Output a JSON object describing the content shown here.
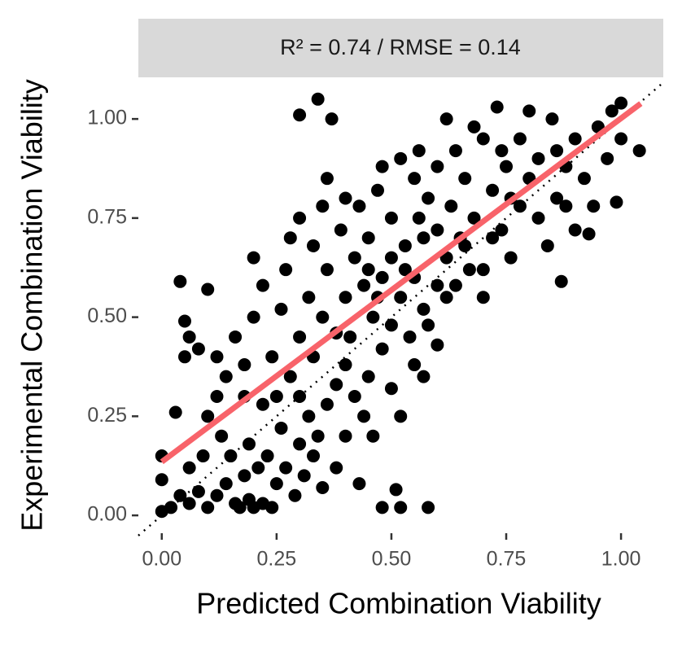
{
  "chart_data": {
    "type": "scatter",
    "strip_title": "R² = 0.74 / RMSE = 0.14",
    "x_label": "Predicted Combination Viability",
    "y_label": "Experimental Combination Viability",
    "xlim": [
      -0.051,
      1.092
    ],
    "ylim": [
      -0.045,
      1.105
    ],
    "xticks": [
      {
        "value": 0,
        "label": "0.00"
      },
      {
        "value": 0.25,
        "label": "0.25"
      },
      {
        "value": 0.5,
        "label": "0.50"
      },
      {
        "value": 0.75,
        "label": "0.75"
      },
      {
        "value": 1,
        "label": "1.00"
      }
    ],
    "yticks": [
      {
        "value": 0,
        "label": "0.00"
      },
      {
        "value": 0.25,
        "label": "0.25"
      },
      {
        "value": 0.5,
        "label": "0.50"
      },
      {
        "value": 0.75,
        "label": "0.75"
      },
      {
        "value": 1,
        "label": "1.00"
      }
    ],
    "identity_line": true,
    "series": [
      {
        "name": "combinations",
        "color": "#000000",
        "x": [
          0.3,
          0.34,
          0.37,
          0.48,
          0.52,
          0.51,
          0.58,
          0.57,
          0.03,
          0.0,
          0.0,
          0.0,
          1.04,
          1.0,
          0.99,
          0.93,
          0.87,
          0.04,
          0.05,
          0.1,
          0.02,
          0.04,
          0.06,
          0.08,
          0.1,
          0.12,
          0.14,
          0.16,
          0.17,
          0.19,
          0.2,
          0.22,
          0.24,
          0.18,
          0.21,
          0.15,
          0.13,
          0.19,
          0.23,
          0.25,
          0.27,
          0.29,
          0.31,
          0.33,
          0.35,
          0.26,
          0.22,
          0.18,
          0.14,
          0.12,
          0.08,
          0.05,
          0.06,
          0.16,
          0.2,
          0.18,
          0.24,
          0.28,
          0.3,
          0.32,
          0.34,
          0.36,
          0.38,
          0.4,
          0.42,
          0.44,
          0.46,
          0.45,
          0.48,
          0.3,
          0.26,
          0.22,
          0.27,
          0.2,
          0.32,
          0.35,
          0.38,
          0.4,
          0.36,
          0.33,
          0.3,
          0.28,
          0.35,
          0.39,
          0.42,
          0.44,
          0.46,
          0.5,
          0.52,
          0.48,
          0.45,
          0.43,
          0.47,
          0.5,
          0.53,
          0.55,
          0.57,
          0.54,
          0.58,
          0.6,
          0.62,
          0.6,
          0.58,
          0.55,
          0.52,
          0.48,
          0.56,
          0.6,
          0.63,
          0.65,
          0.67,
          0.7,
          0.68,
          0.66,
          0.64,
          0.7,
          0.72,
          0.74,
          0.76,
          0.78,
          0.75,
          0.78,
          0.8,
          0.82,
          0.84,
          0.86,
          0.88,
          0.9,
          0.85,
          0.8,
          0.73,
          0.68,
          0.62,
          0.92,
          0.95,
          0.97,
          0.94,
          0.9,
          0.98,
          1.0,
          0.55,
          0.6,
          0.5,
          0.52,
          0.4,
          0.38,
          0.43,
          0.3,
          0.1,
          0.09,
          0.06,
          0.12,
          0.25,
          0.33,
          0.41,
          0.47,
          0.53,
          0.57,
          0.62,
          0.66,
          0.72,
          0.76,
          0.82,
          0.86,
          0.88,
          0.7,
          0.64,
          0.45,
          0.4,
          0.36,
          0.5,
          0.56,
          0.74
        ],
        "values": [
          1.01,
          1.05,
          1.0,
          0.02,
          0.02,
          0.065,
          0.02,
          0.35,
          0.26,
          0.15,
          0.01,
          0.09,
          0.92,
          1.04,
          0.79,
          0.71,
          0.59,
          0.59,
          0.49,
          0.57,
          0.02,
          0.05,
          0.03,
          0.06,
          0.02,
          0.05,
          0.08,
          0.03,
          0.02,
          0.04,
          0.02,
          0.03,
          0.02,
          0.1,
          0.12,
          0.15,
          0.2,
          0.18,
          0.15,
          0.08,
          0.12,
          0.05,
          0.1,
          0.15,
          0.07,
          0.22,
          0.28,
          0.3,
          0.35,
          0.4,
          0.42,
          0.4,
          0.45,
          0.45,
          0.5,
          0.38,
          0.4,
          0.35,
          0.3,
          0.25,
          0.2,
          0.28,
          0.33,
          0.38,
          0.3,
          0.25,
          0.2,
          0.35,
          0.42,
          0.45,
          0.52,
          0.58,
          0.62,
          0.65,
          0.55,
          0.5,
          0.46,
          0.55,
          0.62,
          0.68,
          0.75,
          0.7,
          0.78,
          0.72,
          0.65,
          0.58,
          0.5,
          0.48,
          0.55,
          0.6,
          0.7,
          0.78,
          0.82,
          0.75,
          0.68,
          0.6,
          0.52,
          0.45,
          0.48,
          0.58,
          0.65,
          0.72,
          0.8,
          0.85,
          0.9,
          0.88,
          0.92,
          0.88,
          0.78,
          0.7,
          0.62,
          0.55,
          0.75,
          0.85,
          0.92,
          0.95,
          0.82,
          0.72,
          0.65,
          0.78,
          0.88,
          0.95,
          0.85,
          0.75,
          0.68,
          0.8,
          0.88,
          0.95,
          1.0,
          1.02,
          1.03,
          0.98,
          1.0,
          0.85,
          0.98,
          0.9,
          0.78,
          0.72,
          1.02,
          0.95,
          0.38,
          0.43,
          0.32,
          0.25,
          0.2,
          0.12,
          0.08,
          0.18,
          0.25,
          0.15,
          0.12,
          0.3,
          0.3,
          0.4,
          0.45,
          0.55,
          0.62,
          0.7,
          0.55,
          0.68,
          0.7,
          0.8,
          0.9,
          0.92,
          0.78,
          0.62,
          0.58,
          0.62,
          0.8,
          0.85,
          0.65,
          0.75,
          0.92
        ]
      },
      {
        "name": "fit",
        "color": "#f8636a",
        "x": [
          0,
          1.043
        ],
        "values": [
          0.135,
          1.039
        ]
      }
    ]
  }
}
